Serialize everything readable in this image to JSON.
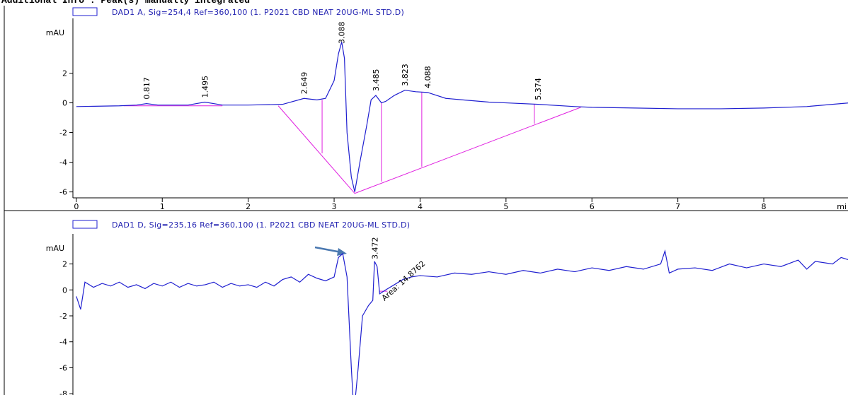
{
  "header": "Additional Info : Peak(s) manually integrated",
  "chart_data": [
    {
      "type": "line",
      "y_unit": "mAU",
      "xlim": [
        -0.04,
        8.98
      ],
      "ylim": [
        -6.4,
        5.5
      ],
      "xticks": [
        0,
        1,
        2,
        3,
        4,
        5,
        6,
        7,
        8
      ],
      "x_unit": "mi",
      "yticks": [
        -6,
        -4,
        -2,
        0,
        2
      ],
      "x": [
        0,
        0.5,
        0.7,
        0.817,
        0.95,
        1.3,
        1.495,
        1.7,
        2.0,
        2.4,
        2.649,
        2.8,
        2.9,
        3.0,
        3.05,
        3.088,
        3.12,
        3.15,
        3.2,
        3.24,
        3.3,
        3.38,
        3.43,
        3.485,
        3.55,
        3.6,
        3.7,
        3.823,
        3.95,
        4.088,
        4.3,
        4.5,
        4.8,
        5.0,
        5.374,
        5.8,
        6.0,
        6.5,
        7.0,
        7.5,
        8.0,
        8.5,
        9.0
      ],
      "series": [
        {
          "name": "DAD1 A, Sig=254,4 Ref=360,100 (1. P2021 CBD NEAT 20UG-ML STD.D)",
          "color": "#1f1fd0",
          "values": [
            -0.25,
            -0.2,
            -0.15,
            -0.05,
            -0.15,
            -0.15,
            0.05,
            -0.15,
            -0.15,
            -0.1,
            0.3,
            0.2,
            0.3,
            1.5,
            3.3,
            4.1,
            3.0,
            -2,
            -5.0,
            -6.0,
            -4,
            -1.5,
            0.2,
            0.5,
            0.0,
            0.1,
            0.5,
            0.85,
            0.75,
            0.7,
            0.3,
            0.2,
            0.05,
            0.0,
            -0.1,
            -0.25,
            -0.3,
            -0.35,
            -0.4,
            -0.4,
            -0.35,
            -0.25,
            0.0
          ]
        }
      ],
      "peaks": [
        0.817,
        1.495,
        2.649,
        3.088,
        3.485,
        3.823,
        4.088,
        5.374
      ],
      "integration_color": "#e020e0",
      "integration_lines": [
        {
          "x": [
            0.55,
            1.7
          ],
          "y": [
            -0.2,
            -0.2
          ]
        },
        {
          "x": [
            2.35,
            3.24,
            5.87
          ],
          "y": [
            -0.2,
            -6.1,
            -0.3
          ]
        },
        {
          "x": [
            2.86,
            2.86
          ],
          "y": [
            0.2,
            -3.4
          ]
        },
        {
          "x": [
            3.55,
            3.55
          ],
          "y": [
            0.0,
            -5.3
          ]
        },
        {
          "x": [
            4.02,
            4.02
          ],
          "y": [
            0.7,
            -4.3
          ]
        },
        {
          "x": [
            5.33,
            5.33
          ],
          "y": [
            -0.1,
            -1.4
          ]
        }
      ]
    },
    {
      "type": "line",
      "y_unit": "mAU",
      "xlim": [
        -0.04,
        8.98
      ],
      "ylim": [
        -8.1,
        4.1
      ],
      "yticks": [
        -8,
        -6,
        -4,
        -2,
        0,
        2
      ],
      "x": [
        0.0,
        0.05,
        0.1,
        0.2,
        0.3,
        0.4,
        0.5,
        0.6,
        0.7,
        0.8,
        0.9,
        1.0,
        1.1,
        1.2,
        1.3,
        1.4,
        1.5,
        1.6,
        1.7,
        1.8,
        1.9,
        2.0,
        2.1,
        2.2,
        2.3,
        2.4,
        2.5,
        2.6,
        2.7,
        2.8,
        2.9,
        3.0,
        3.05,
        3.1,
        3.15,
        3.2,
        3.23,
        3.28,
        3.33,
        3.4,
        3.45,
        3.47,
        3.5,
        3.53,
        3.6,
        3.7,
        3.8,
        3.9,
        4.0,
        4.2,
        4.4,
        4.6,
        4.8,
        5.0,
        5.2,
        5.4,
        5.6,
        5.8,
        6.0,
        6.2,
        6.4,
        6.6,
        6.8,
        6.85,
        6.9,
        7.0,
        7.2,
        7.4,
        7.6,
        7.8,
        8.0,
        8.2,
        8.4,
        8.5,
        8.6,
        8.8,
        8.9,
        9.0
      ],
      "series": [
        {
          "name": "DAD1 D, Sig=235,16 Ref=360,100 (1. P2021 CBD NEAT 20UG-ML STD.D)",
          "color": "#1f1fd0",
          "values": [
            -0.5,
            -1.5,
            0.6,
            0.2,
            0.5,
            0.3,
            0.6,
            0.2,
            0.4,
            0.1,
            0.5,
            0.3,
            0.6,
            0.2,
            0.5,
            0.3,
            0.4,
            0.6,
            0.2,
            0.5,
            0.3,
            0.4,
            0.2,
            0.6,
            0.3,
            0.8,
            1.0,
            0.6,
            1.2,
            0.9,
            0.7,
            1.0,
            2.5,
            2.8,
            1.0,
            -6,
            -9.5,
            -6,
            -2,
            -1.2,
            -0.8,
            2.2,
            1.8,
            -0.3,
            0.0,
            0.4,
            0.8,
            1.0,
            1.1,
            1.0,
            1.3,
            1.2,
            1.4,
            1.2,
            1.5,
            1.3,
            1.6,
            1.4,
            1.7,
            1.5,
            1.8,
            1.6,
            2.0,
            3.0,
            1.3,
            1.6,
            1.7,
            1.5,
            2.0,
            1.7,
            2.0,
            1.8,
            2.3,
            1.6,
            2.2,
            2.0,
            2.5,
            2.3
          ]
        }
      ],
      "peaks": [
        3.472
      ],
      "area_label": "Area: 14.8762",
      "integration_color": "#e020e0",
      "integration_lines": [
        {
          "x": [
            3.53,
            3.62
          ],
          "y": [
            -0.1,
            -0.1
          ]
        }
      ]
    }
  ]
}
